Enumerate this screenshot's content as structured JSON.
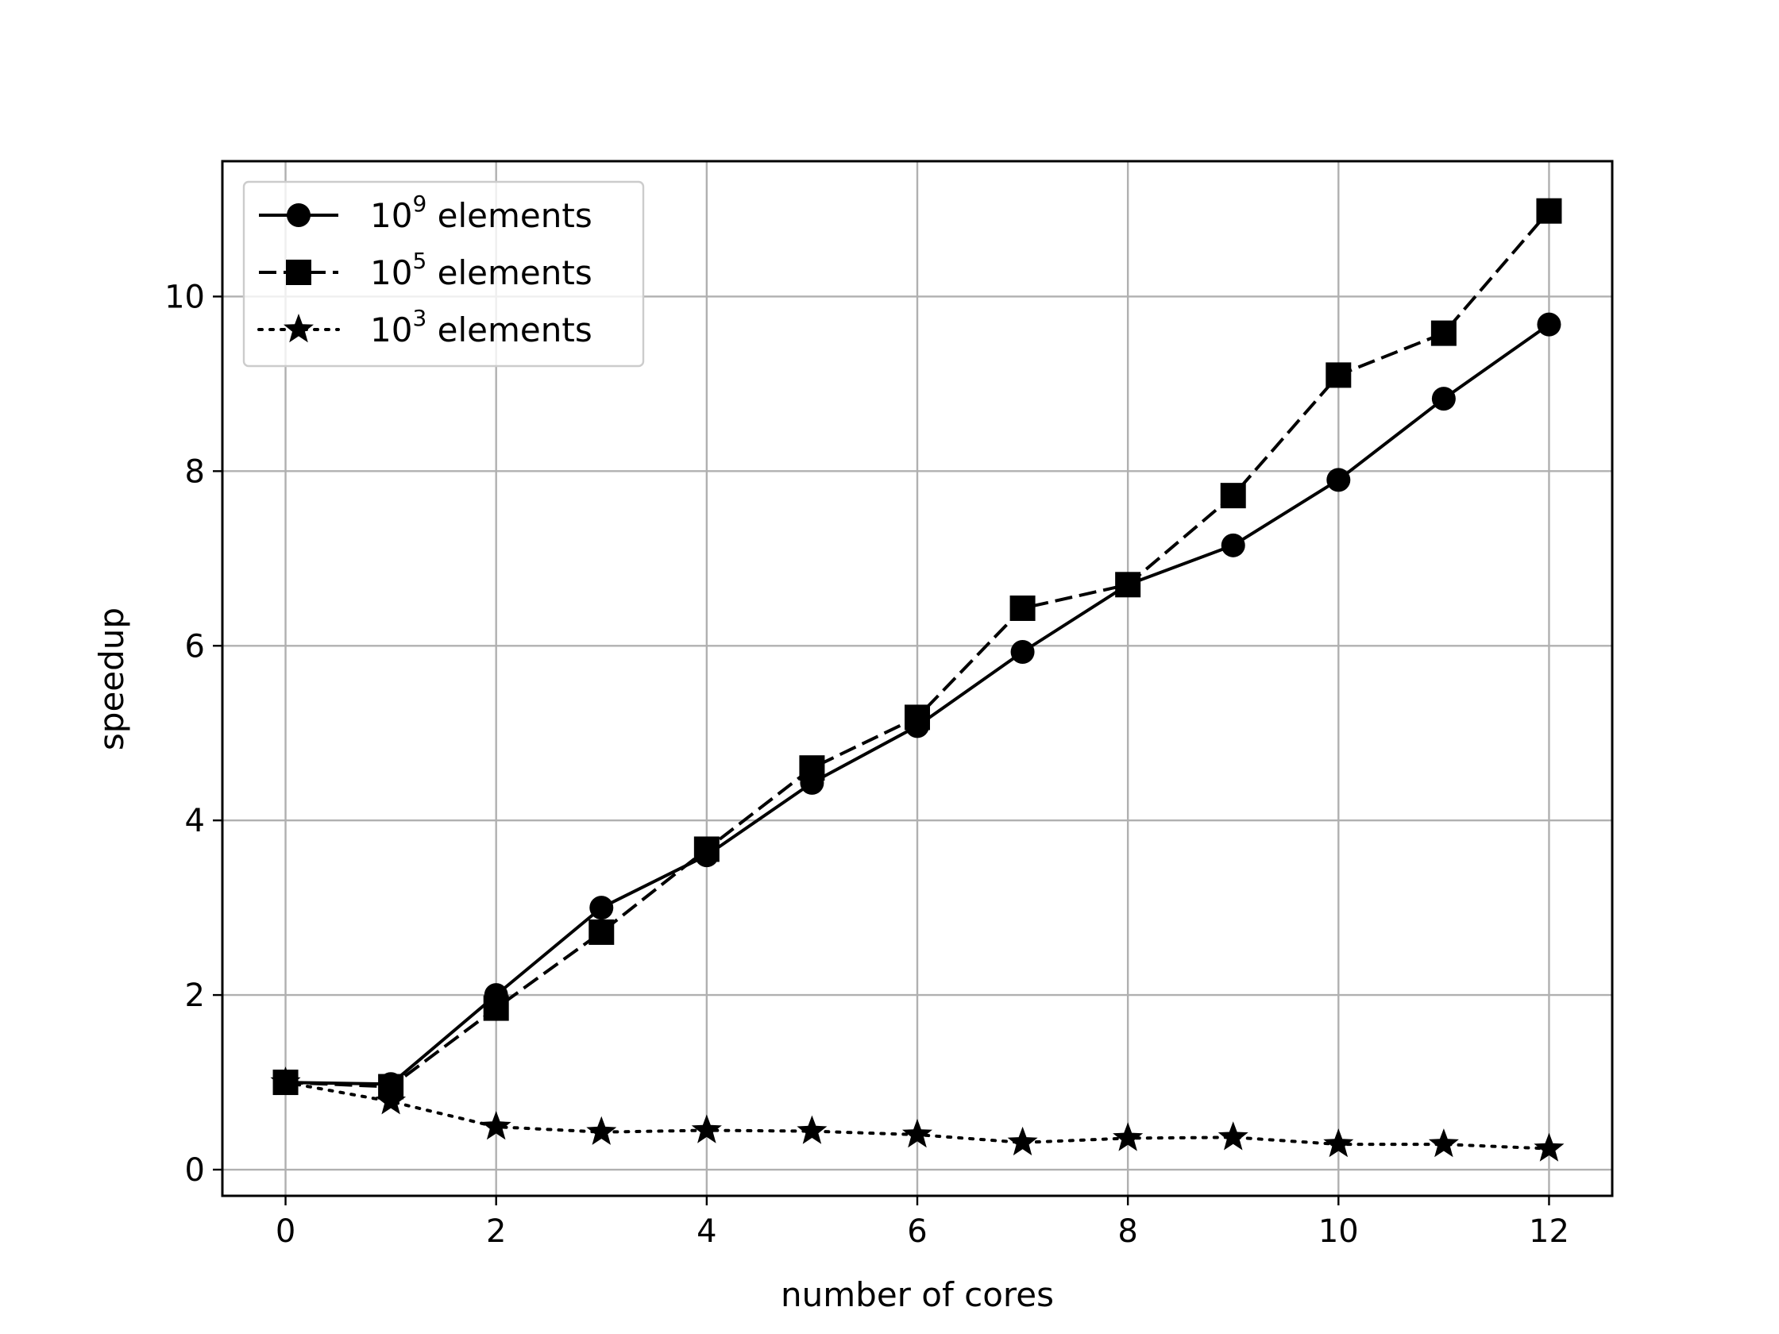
{
  "chart_data": {
    "type": "line",
    "title": "",
    "xlabel": "number of cores",
    "ylabel": "speedup",
    "xlim": [
      -0.6,
      12.6
    ],
    "ylim": [
      -0.3,
      11.55
    ],
    "xticks": [
      0,
      2,
      4,
      6,
      8,
      10,
      12
    ],
    "yticks": [
      0,
      2,
      4,
      6,
      8,
      10
    ],
    "grid": true,
    "legend_position": "top-left",
    "x": [
      0,
      1,
      2,
      3,
      4,
      5,
      6,
      7,
      8,
      9,
      10,
      11,
      12
    ],
    "series": [
      {
        "name": "10^9 elements",
        "legend_base": "10",
        "legend_exp": "9",
        "legend_text": "elements",
        "marker": "circle",
        "linestyle": "solid",
        "color": "#000000",
        "values": [
          1.0,
          0.98,
          2.0,
          3.0,
          3.6,
          4.43,
          5.08,
          5.93,
          6.7,
          7.15,
          7.9,
          8.83,
          9.68
        ]
      },
      {
        "name": "10^5 elements",
        "legend_base": "10",
        "legend_exp": "5",
        "legend_text": "elements",
        "marker": "square",
        "linestyle": "dashed",
        "color": "#000000",
        "values": [
          1.0,
          0.95,
          1.85,
          2.72,
          3.67,
          4.6,
          5.18,
          6.43,
          6.7,
          7.72,
          9.1,
          9.58,
          10.98
        ]
      },
      {
        "name": "10^3 elements",
        "legend_base": "10",
        "legend_exp": "3",
        "legend_text": "elements",
        "marker": "star",
        "linestyle": "dotted",
        "color": "#000000",
        "values": [
          1.0,
          0.78,
          0.49,
          0.43,
          0.45,
          0.44,
          0.4,
          0.31,
          0.36,
          0.37,
          0.29,
          0.29,
          0.24
        ]
      }
    ]
  }
}
